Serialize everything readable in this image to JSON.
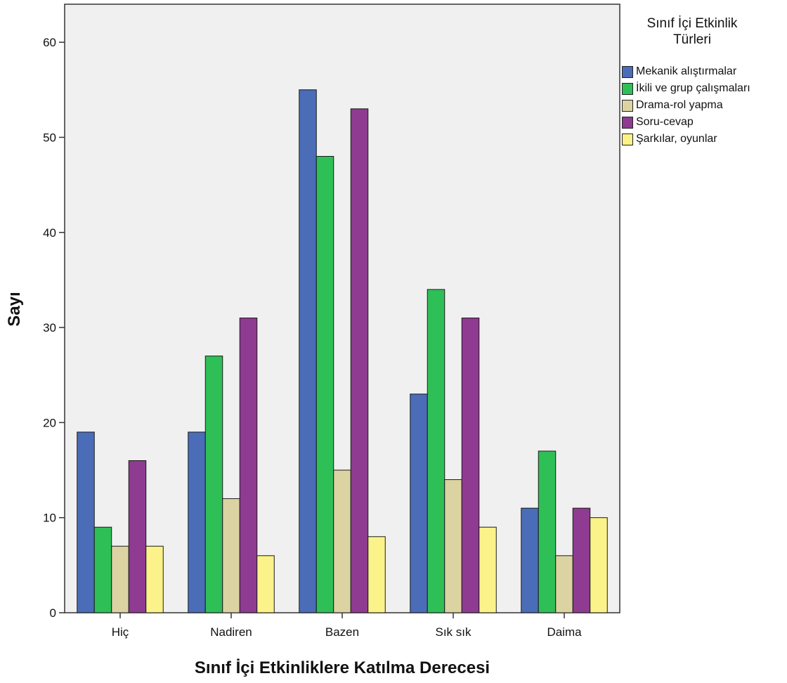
{
  "chart_data": {
    "type": "bar",
    "title": "",
    "xlabel": "Sınıf İçi Etkinliklere Katılma Derecesi",
    "ylabel": "Sayı",
    "ylim": [
      0,
      64
    ],
    "yticks": [
      0,
      10,
      20,
      30,
      40,
      50,
      60
    ],
    "grid": false,
    "legend_position": "right",
    "legend_title": "Sınıf İçi Etkinlik\nTürleri",
    "categories": [
      "Hiç",
      "Nadiren",
      "Bazen",
      "Sık sık",
      "Daima"
    ],
    "series": [
      {
        "name": "Mekanik alıştırmalar",
        "color": "#4b6cb7",
        "values": [
          19,
          19,
          55,
          23,
          11
        ]
      },
      {
        "name": "İkili ve grup çalışmaları",
        "color": "#2fbf57",
        "values": [
          9,
          27,
          48,
          34,
          17
        ]
      },
      {
        "name": "Drama-rol yapma",
        "color": "#dcd3a3",
        "values": [
          7,
          12,
          15,
          14,
          6
        ]
      },
      {
        "name": "Soru-cevap",
        "color": "#8e3b91",
        "values": [
          16,
          31,
          53,
          31,
          11
        ]
      },
      {
        "name": "Şarkılar, oyunlar",
        "color": "#fbf28a",
        "values": [
          7,
          6,
          8,
          9,
          10
        ]
      }
    ],
    "plot_background": "#f0f0f0"
  }
}
